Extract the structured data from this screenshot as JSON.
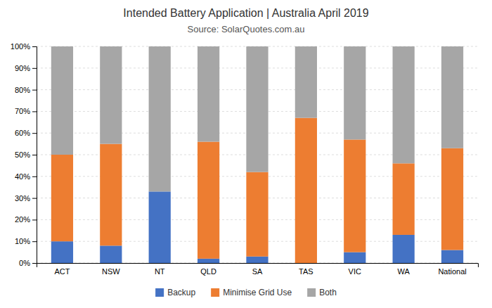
{
  "chart_data": {
    "type": "bar",
    "stacked": true,
    "title": "Intended Battery Application | Australia April 2019",
    "subtitle": "Source: SolarQuotes.com.au",
    "categories": [
      "ACT",
      "NSW",
      "NT",
      "QLD",
      "SA",
      "TAS",
      "VIC",
      "WA",
      "National"
    ],
    "series": [
      {
        "name": "Backup",
        "color": "#4472c4",
        "values": [
          10,
          8,
          33,
          2,
          3,
          0,
          5,
          13,
          6
        ]
      },
      {
        "name": "Minimise Grid Use",
        "color": "#ed7d31",
        "values": [
          40,
          47,
          0,
          54,
          39,
          67,
          52,
          33,
          47
        ]
      },
      {
        "name": "Both",
        "color": "#a6a6a6",
        "values": [
          50,
          45,
          67,
          44,
          58,
          33,
          43,
          54,
          47
        ]
      }
    ],
    "ylim": [
      0,
      100
    ],
    "yticks": [
      {
        "value": 0,
        "label": "0%"
      },
      {
        "value": 10,
        "label": "10%"
      },
      {
        "value": 20,
        "label": "20%"
      },
      {
        "value": 30,
        "label": "30%"
      },
      {
        "value": 40,
        "label": "40%"
      },
      {
        "value": 50,
        "label": "50%"
      },
      {
        "value": 60,
        "label": "60%"
      },
      {
        "value": 70,
        "label": "70%"
      },
      {
        "value": 80,
        "label": "80%"
      },
      {
        "value": 90,
        "label": "90%"
      },
      {
        "value": 100,
        "label": "100%"
      }
    ],
    "grid": true,
    "legend": "bottom"
  }
}
